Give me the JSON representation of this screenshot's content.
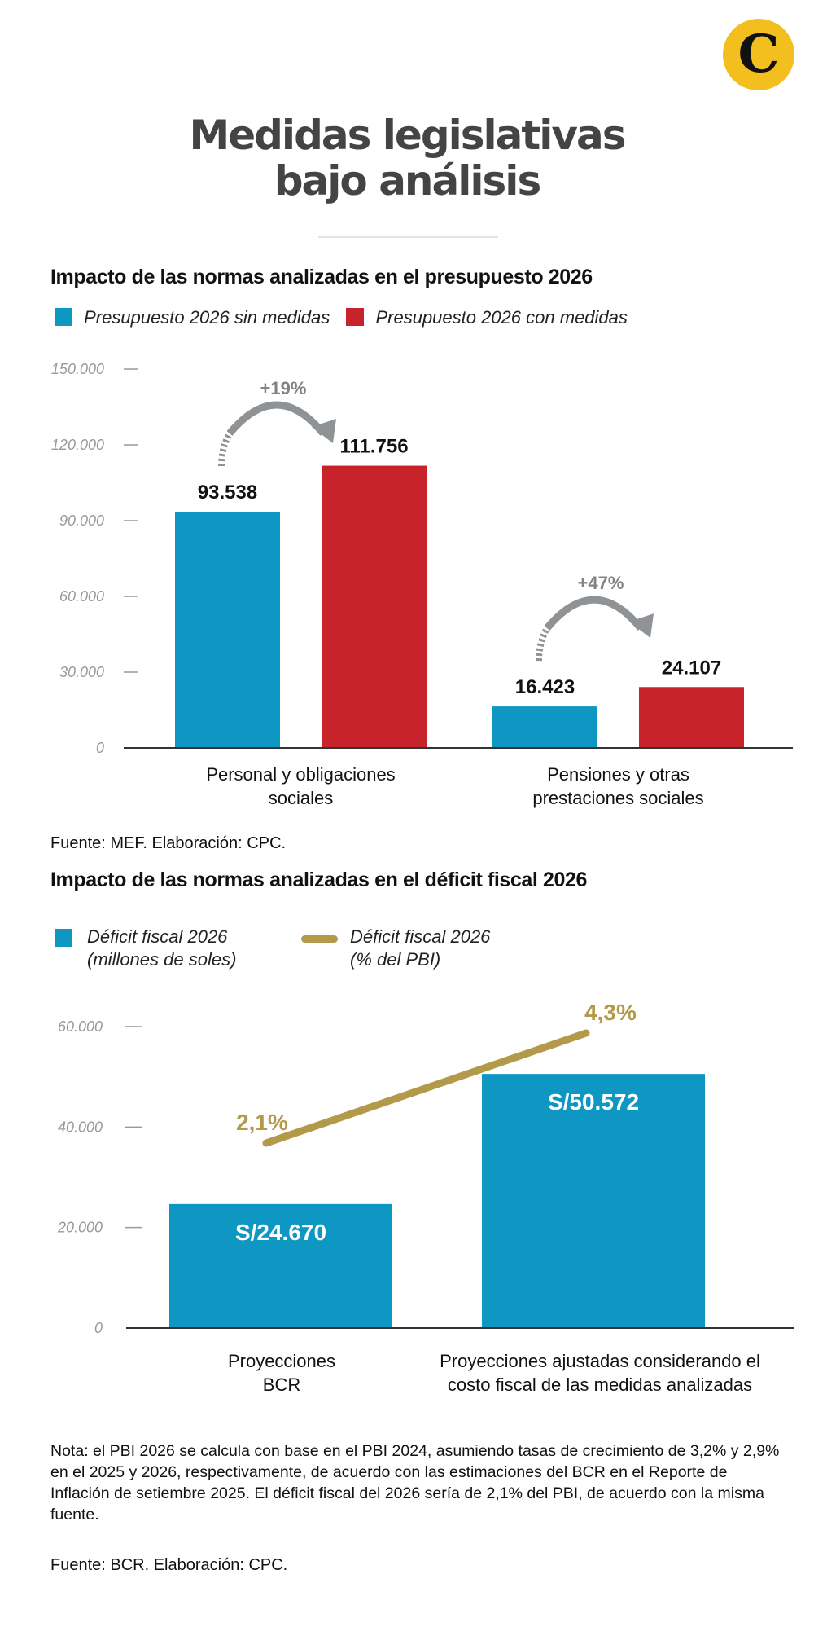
{
  "brand": {
    "logo_letter": "C",
    "logo_color": "#F2BF1E"
  },
  "title": {
    "line1": "Medidas legislativas",
    "line2": "bajo análisis"
  },
  "colors": {
    "blue": "#0E97C3",
    "red": "#C8222B",
    "gold": "#B29A4A",
    "arrow_gray": "#909396",
    "tick_gray": "#999999"
  },
  "section1": {
    "heading": "Impacto de las normas analizadas en el presupuesto 2026",
    "legend": [
      {
        "label": "Presupuesto 2026 sin medidas",
        "color": "#0E97C3"
      },
      {
        "label": "Presupuesto 2026 con medidas",
        "color": "#C8222B"
      }
    ],
    "source": "Fuente: MEF. Elaboración: CPC."
  },
  "section2": {
    "heading": "Impacto de las normas analizadas en el déficit fiscal 2026",
    "legend": [
      {
        "label_line1": "Déficit fiscal 2026",
        "label_line2": "(millones de soles)",
        "color": "#0E97C3",
        "shape": "square"
      },
      {
        "label_line1": "Déficit fiscal 2026",
        "label_line2": "(% del PBI)",
        "color": "#B29A4A",
        "shape": "line"
      }
    ],
    "note": "Nota: el PBI 2026 se calcula con base en el PBI 2024, asumiendo tasas de crecimiento de 3,2% y 2,9% en el 2025 y 2026, respectivamente, de acuerdo con las estimaciones del BCR en el Reporte de Inflación de setiembre 2025. El déficit fiscal del 2026 sería de 2,1% del PBI, de acuerdo con la misma fuente.",
    "source": "Fuente: BCR.  Elaboración: CPC."
  },
  "chart_data": [
    {
      "type": "bar",
      "title": "Impacto de las normas analizadas en el presupuesto 2026",
      "xlabel": "",
      "ylabel": "",
      "categories": [
        [
          "Personal y obligaciones",
          "sociales"
        ],
        [
          "Pensiones y otras",
          "prestaciones sociales"
        ]
      ],
      "series": [
        {
          "name": "Presupuesto 2026 sin medidas",
          "color": "#0E97C3",
          "values": [
            93538,
            16423
          ],
          "labels": [
            "93.538",
            "16.423"
          ]
        },
        {
          "name": "Presupuesto 2026 con medidas",
          "color": "#C8222B",
          "values": [
            111756,
            24107
          ],
          "labels": [
            "111.756",
            "24.107"
          ]
        }
      ],
      "annotations": [
        "+19%",
        "+47%"
      ],
      "ylim": [
        0,
        150000
      ],
      "yticks": [
        0,
        30000,
        60000,
        90000,
        120000,
        150000
      ],
      "ytick_labels": [
        "0",
        "30.000",
        "60.000",
        "90.000",
        "120.000",
        "150.000"
      ],
      "grid": false,
      "legend_position": "top-left"
    },
    {
      "type": "bar",
      "title": "Impacto de las normas analizadas en el déficit fiscal 2026",
      "xlabel": "",
      "ylabel": "",
      "categories": [
        [
          "Proyecciones",
          "BCR"
        ],
        [
          "Proyecciones ajustadas considerando el",
          "costo fiscal de las medidas analizadas"
        ]
      ],
      "series": [
        {
          "name": "Déficit fiscal 2026 (millones de soles)",
          "type": "bar",
          "color": "#0E97C3",
          "values": [
            24670,
            50572
          ],
          "labels": [
            "S/24.670",
            "S/50.572"
          ]
        },
        {
          "name": "Déficit fiscal 2026 (% del PBI)",
          "type": "line",
          "color": "#B29A4A",
          "values": [
            2.1,
            4.3
          ],
          "labels": [
            "2,1%",
            "4,3%"
          ]
        }
      ],
      "ylim": [
        0,
        60000
      ],
      "yticks": [
        0,
        20000,
        40000,
        60000
      ],
      "ytick_labels": [
        "0",
        "20.000",
        "40.000",
        "60.000"
      ],
      "grid": false,
      "legend_position": "top-left"
    }
  ]
}
